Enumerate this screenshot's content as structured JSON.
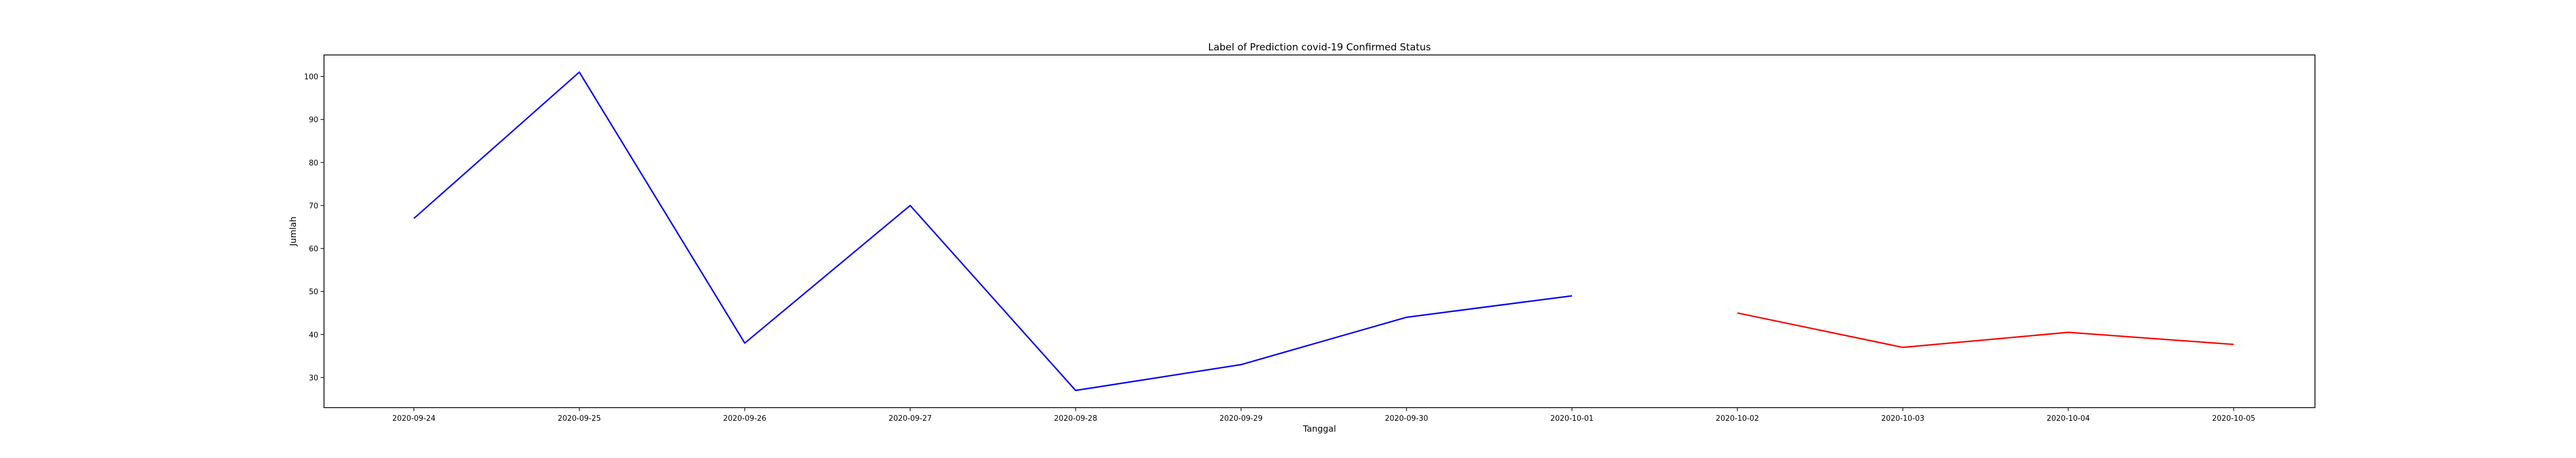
{
  "chart_data": {
    "type": "line",
    "title": "Label of Prediction covid-19 Confirmed Status",
    "xlabel": "Tanggal",
    "ylabel": "Jumlah",
    "categories": [
      "2020-09-24",
      "2020-09-25",
      "2020-09-26",
      "2020-09-27",
      "2020-09-28",
      "2020-09-29",
      "2020-09-30",
      "2020-10-01",
      "2020-10-02",
      "2020-10-03",
      "2020-10-04",
      "2020-10-05"
    ],
    "ylim": [
      23,
      105
    ],
    "yticks": [
      30,
      40,
      50,
      60,
      70,
      80,
      90,
      100
    ],
    "grid": false,
    "series": [
      {
        "color": "#0000ff",
        "x": [
          "2020-09-24",
          "2020-09-25",
          "2020-09-26",
          "2020-09-27",
          "2020-09-28",
          "2020-09-29",
          "2020-09-30",
          "2020-10-01"
        ],
        "values": [
          67,
          101,
          38,
          70,
          27,
          33,
          44,
          49
        ]
      },
      {
        "color": "#ff0000",
        "x": [
          "2020-10-02",
          "2020-10-03",
          "2020-10-04",
          "2020-10-05"
        ],
        "values": [
          45,
          37,
          40.5,
          37.7
        ]
      }
    ]
  }
}
